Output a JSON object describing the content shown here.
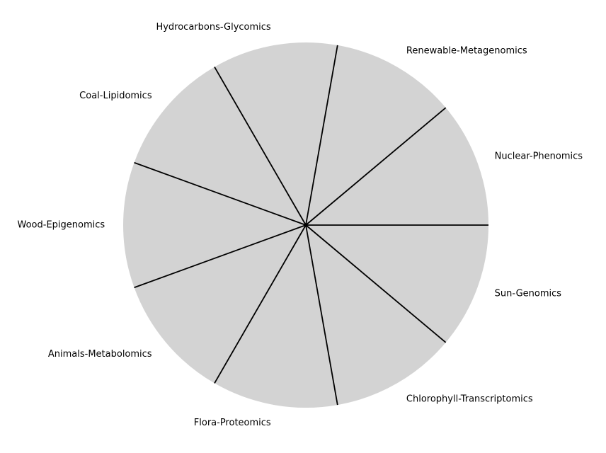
{
  "chart_data": {
    "type": "pie",
    "labels": [
      "Nuclear-Phenomics",
      "Renewable-Metagenomics",
      "Hydrocarbons-Glycomics",
      "Coal-Lipidomics",
      "Wood-Epigenomics",
      "Animals-Metabolomics",
      "Flora-Proteomics",
      "Chlorophyll-Transcriptomics",
      "Sun-Genomics"
    ],
    "values": [
      1,
      1,
      1,
      1,
      1,
      1,
      1,
      1,
      1
    ],
    "start_angle_deg": 0,
    "direction": "counterclockwise",
    "slice_color": "#d3d3d3",
    "edge_color": "#000000",
    "title": ""
  }
}
